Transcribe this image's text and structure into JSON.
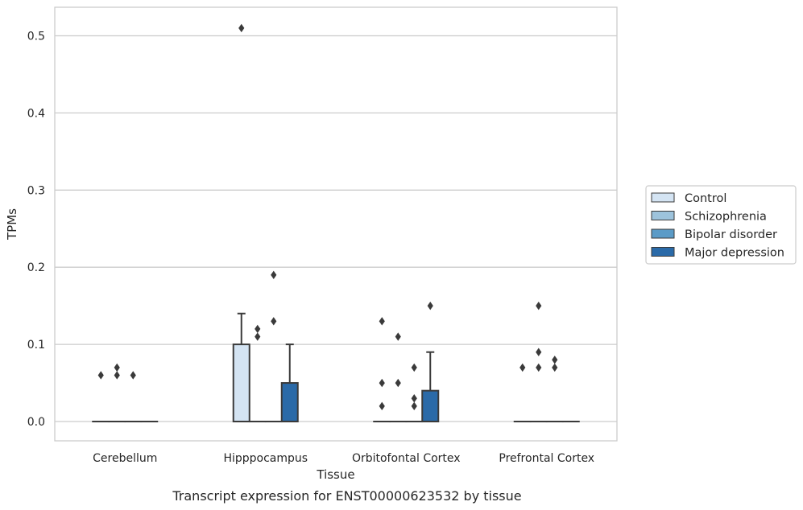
{
  "chart_data": {
    "type": "box",
    "caption": "Transcript expression for ENST00000623532 by tissue",
    "xlabel": "Tissue",
    "ylabel": "TPMs",
    "ylim": [
      -0.025,
      0.537
    ],
    "yticks": [
      0.0,
      0.1,
      0.2,
      0.3,
      0.4,
      0.5
    ],
    "ytick_labels": [
      "0.0",
      "0.1",
      "0.2",
      "0.3",
      "0.4",
      "0.5"
    ],
    "grid": "horizontal",
    "legend_position": "right",
    "categories": [
      "Cerebellum",
      "Hipppocampus",
      "Orbitofontal Cortex",
      "Prefrontal Cortex"
    ],
    "series": [
      {
        "name": "Control",
        "color": "#d4e4f3",
        "boxes": [
          {
            "q1": 0,
            "median": 0,
            "q3": 0,
            "whisker_low": 0,
            "whisker_high": 0,
            "outliers": [
              0.06
            ]
          },
          {
            "q1": 0,
            "median": 0,
            "q3": 0.1,
            "whisker_low": 0,
            "whisker_high": 0.14,
            "outliers": [
              0.51
            ]
          },
          {
            "q1": 0,
            "median": 0,
            "q3": 0,
            "whisker_low": 0,
            "whisker_high": 0,
            "outliers": [
              0.13,
              0.05,
              0.02
            ]
          },
          {
            "q1": 0,
            "median": 0,
            "q3": 0,
            "whisker_low": 0,
            "whisker_high": 0,
            "outliers": [
              0.07
            ]
          }
        ]
      },
      {
        "name": "Schizophrenia",
        "color": "#9dc3dc",
        "boxes": [
          {
            "q1": 0,
            "median": 0,
            "q3": 0,
            "whisker_low": 0,
            "whisker_high": 0,
            "outliers": [
              0.07,
              0.06
            ]
          },
          {
            "q1": 0,
            "median": 0,
            "q3": 0,
            "whisker_low": 0,
            "whisker_high": 0,
            "outliers": [
              0.12,
              0.11
            ]
          },
          {
            "q1": 0,
            "median": 0,
            "q3": 0,
            "whisker_low": 0,
            "whisker_high": 0,
            "outliers": [
              0.11,
              0.05
            ]
          },
          {
            "q1": 0,
            "median": 0,
            "q3": 0,
            "whisker_low": 0,
            "whisker_high": 0,
            "outliers": [
              0.15,
              0.09,
              0.07
            ]
          }
        ]
      },
      {
        "name": "Bipolar disorder",
        "color": "#5b9bc7",
        "boxes": [
          {
            "q1": 0,
            "median": 0,
            "q3": 0,
            "whisker_low": 0,
            "whisker_high": 0,
            "outliers": [
              0.06
            ]
          },
          {
            "q1": 0,
            "median": 0,
            "q3": 0,
            "whisker_low": 0,
            "whisker_high": 0,
            "outliers": [
              0.19,
              0.13
            ]
          },
          {
            "q1": 0,
            "median": 0,
            "q3": 0,
            "whisker_low": 0,
            "whisker_high": 0,
            "outliers": [
              0.07,
              0.03,
              0.02
            ]
          },
          {
            "q1": 0,
            "median": 0,
            "q3": 0,
            "whisker_low": 0,
            "whisker_high": 0,
            "outliers": [
              0.08,
              0.07
            ]
          }
        ]
      },
      {
        "name": "Major depression",
        "color": "#2a6aa8",
        "boxes": [
          {
            "q1": 0,
            "median": 0,
            "q3": 0,
            "whisker_low": 0,
            "whisker_high": 0,
            "outliers": []
          },
          {
            "q1": 0,
            "median": 0,
            "q3": 0.05,
            "whisker_low": 0,
            "whisker_high": 0.1,
            "outliers": []
          },
          {
            "q1": 0,
            "median": 0,
            "q3": 0.04,
            "whisker_low": 0,
            "whisker_high": 0.09,
            "outliers": [
              0.15
            ]
          },
          {
            "q1": 0,
            "median": 0,
            "q3": 0,
            "whisker_low": 0,
            "whisker_high": 0,
            "outliers": []
          }
        ]
      }
    ]
  }
}
